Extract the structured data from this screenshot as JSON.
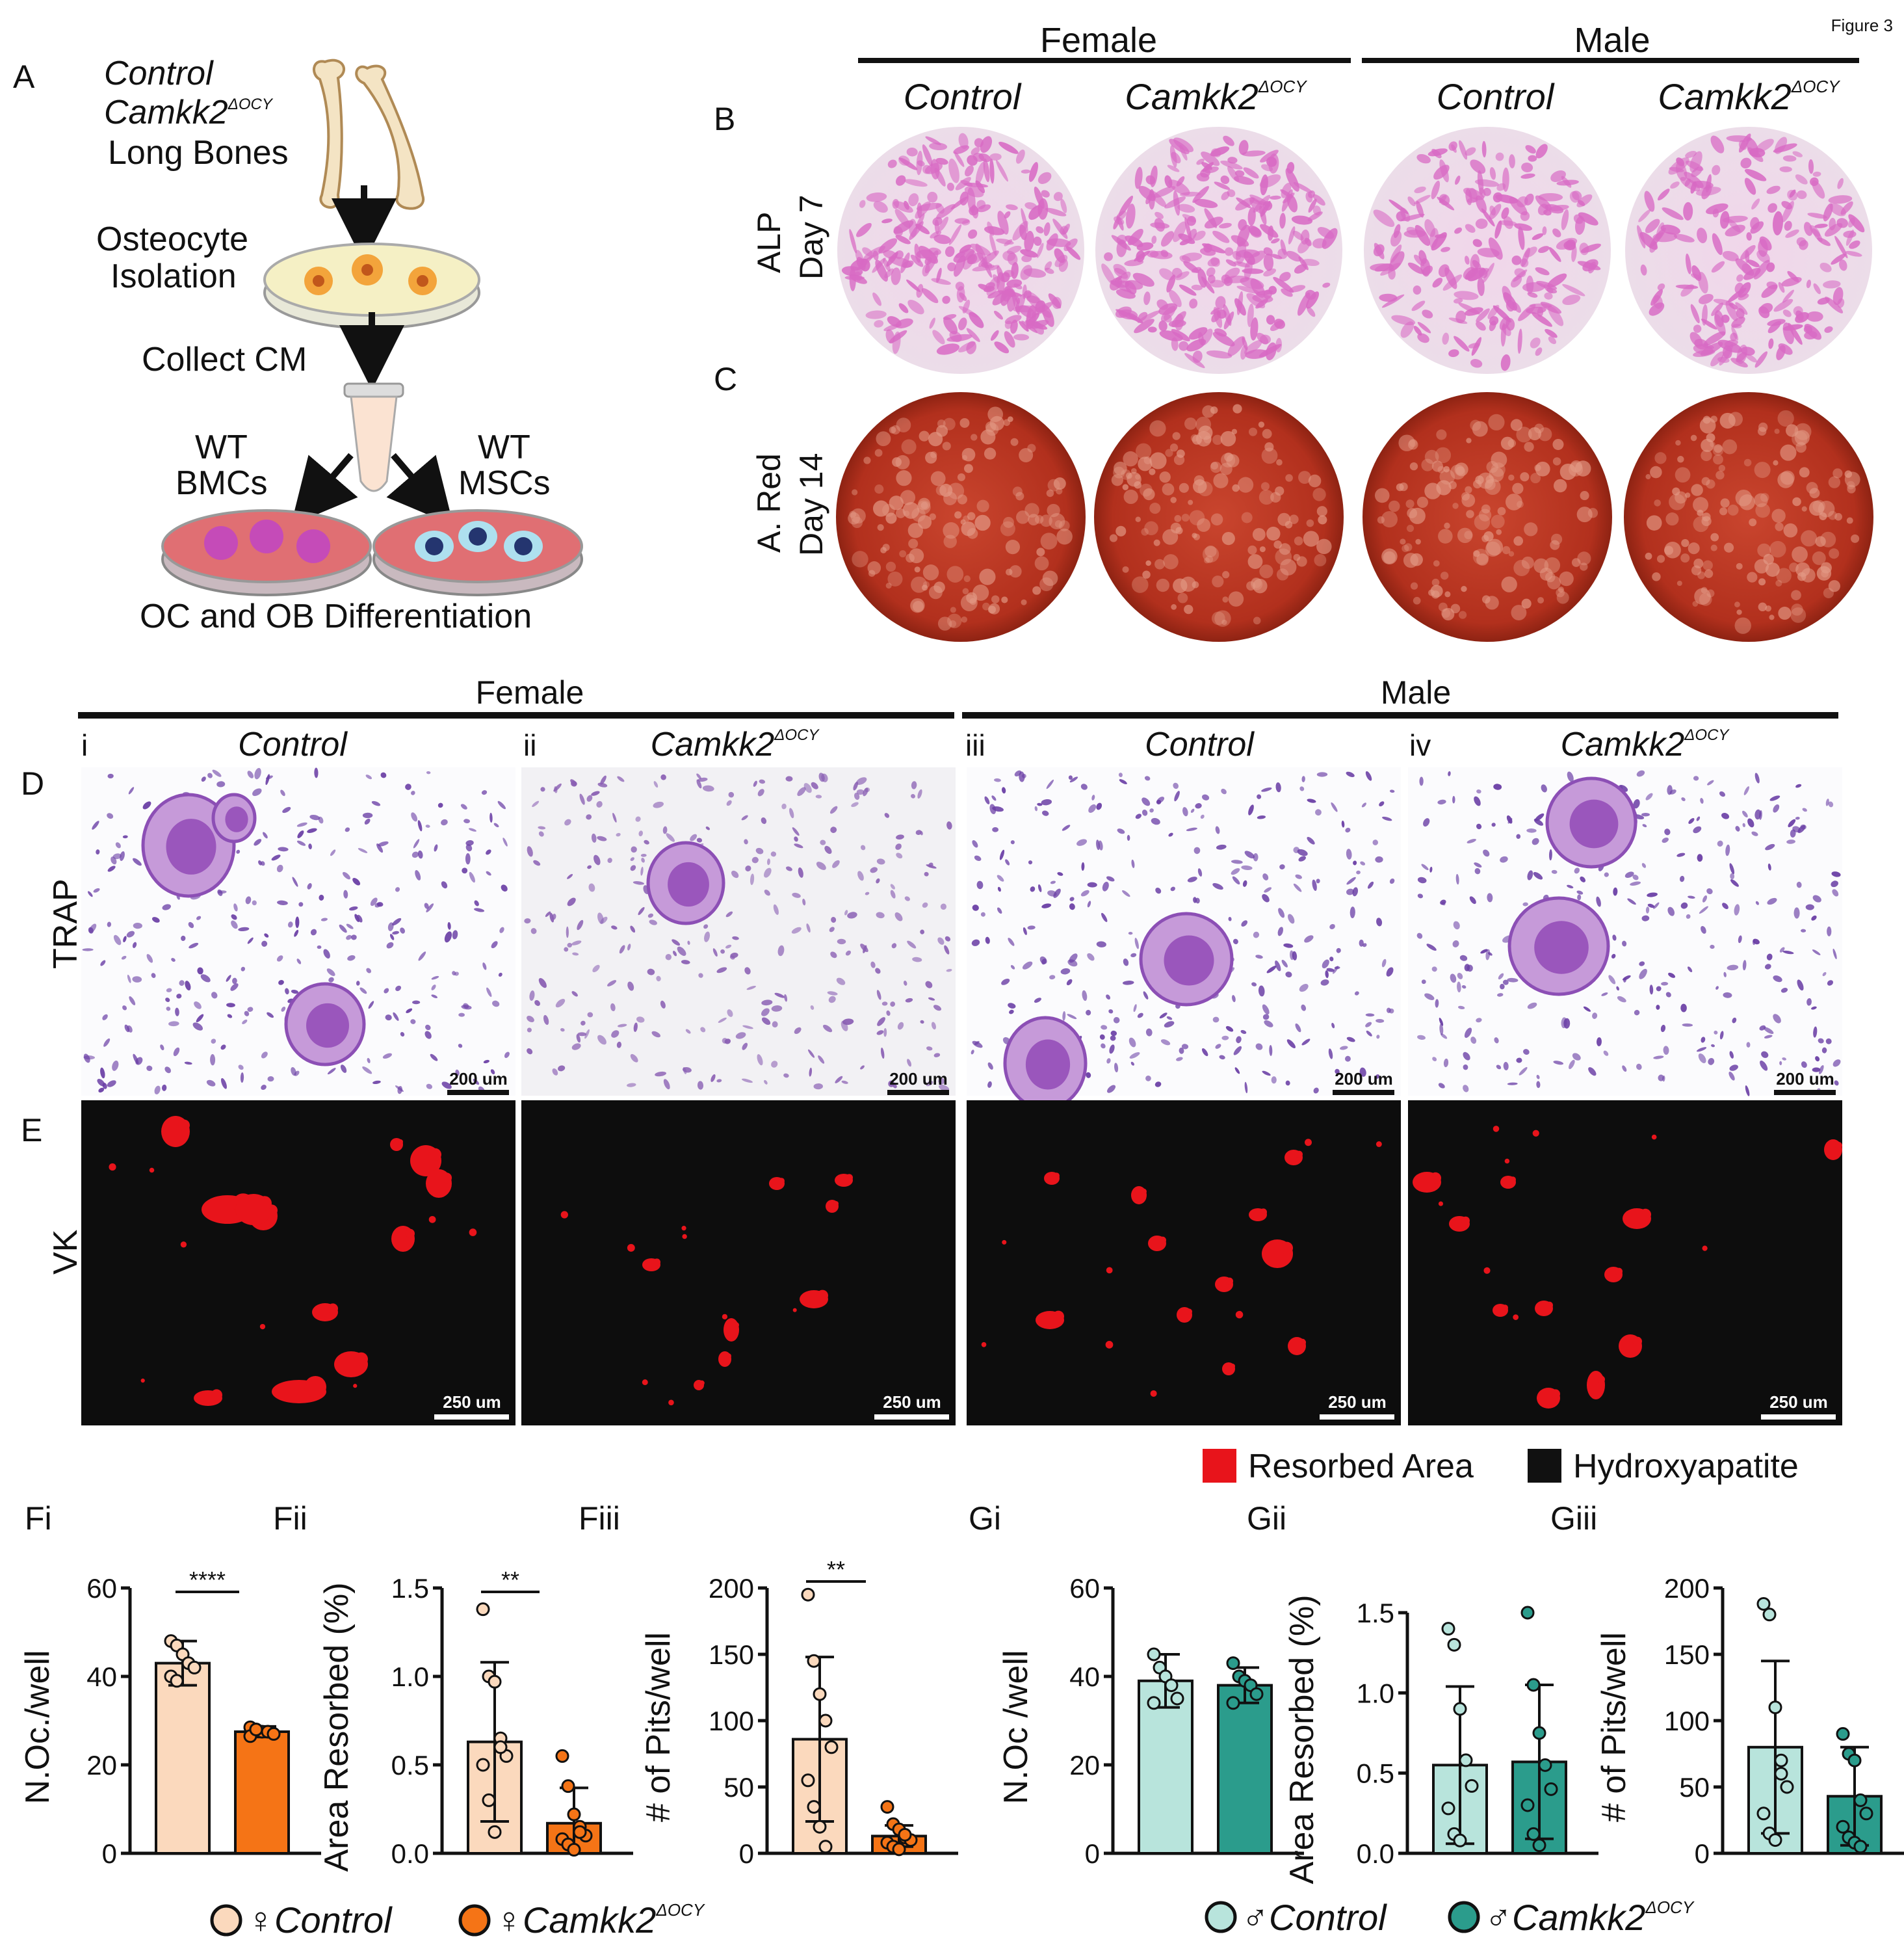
{
  "figure_label": "Figure 3",
  "panels": {
    "A": "A",
    "B": "B",
    "C": "C",
    "D": "D",
    "E": "E",
    "Fi": "Fi",
    "Fii": "Fii",
    "Fiii": "Fiii",
    "Gi": "Gi",
    "Gii": "Gii",
    "Giii": "Giii"
  },
  "schematic": {
    "control": "Control",
    "camkk2": "Camkk2",
    "camkk2_sup": "ΔOCY",
    "long_bones": "Long Bones",
    "osteocyte": "Osteocyte",
    "isolation": "Isolation",
    "collect_cm": "Collect CM",
    "wt1": "WT",
    "bmcs": "BMCs",
    "wt2": "WT",
    "mscs": "MSCs",
    "differentiation": "OC and OB Differentiation"
  },
  "top_headers": {
    "female": "Female",
    "male": "Male",
    "columns": [
      "Control",
      "Camkk2",
      "Control",
      "Camkk2"
    ],
    "sup": "ΔOCY"
  },
  "row_labels": {
    "alp_1": "ALP",
    "alp_2": "Day 7",
    "ared_1": "A. Red",
    "ared_2": "Day 14",
    "trap": "TRAP",
    "vk": "VK"
  },
  "mid_headers": {
    "female": "Female",
    "male": "Male",
    "roman": [
      "i",
      "ii",
      "iii",
      "iv"
    ],
    "columns": [
      "Control",
      "Camkk2",
      "Control",
      "Camkk2"
    ],
    "sup": "ΔOCY"
  },
  "scalebars": {
    "trap": "200 um",
    "vk": "250 um"
  },
  "legend_vk": {
    "resorbed": "Resorbed Area",
    "hydroxyapatite": "Hydroxyapatite"
  },
  "colors": {
    "female_control": "#fbd9bd",
    "female_camkk2": "#f57416",
    "male_control": "#b8e4dc",
    "male_camkk2": "#2b9c8c",
    "resorbed": "#e8141b",
    "alp": "#d86ac4",
    "ared": "#b3281a"
  },
  "bottom_legend": {
    "female_symbol": "♀",
    "male_symbol": "♂",
    "control": "Control",
    "camkk2": "Camkk2",
    "sup": "ΔOCY"
  },
  "chart_data": [
    {
      "id": "Fi",
      "type": "bar",
      "ylabel": "N.Oc./well",
      "ylim": [
        0,
        60
      ],
      "yticks": [
        "0",
        "20",
        "40",
        "60"
      ],
      "significance": "****",
      "series": [
        {
          "name": "♀Control",
          "mean": 43,
          "sd": 5,
          "points": [
            48,
            47,
            45,
            43,
            42,
            40,
            39
          ]
        },
        {
          "name": "♀Camkk2ΔOCY",
          "mean": 27.5,
          "sd": 1.2,
          "points": [
            28.5,
            28,
            27.5,
            27.5,
            27,
            26.5,
            28
          ]
        }
      ]
    },
    {
      "id": "Fii",
      "type": "bar",
      "ylabel": "Area Resorbed (%)",
      "ylim": [
        0,
        1.5
      ],
      "yticks": [
        "0.0",
        "0.5",
        "1.0",
        "1.5"
      ],
      "significance": "**",
      "series": [
        {
          "name": "♀Control",
          "mean": 0.63,
          "sd": 0.45,
          "points": [
            1.38,
            1.0,
            0.97,
            0.65,
            0.55,
            0.5,
            0.3,
            0.12,
            0.6
          ]
        },
        {
          "name": "♀Camkk2ΔOCY",
          "mean": 0.17,
          "sd": 0.2,
          "points": [
            0.55,
            0.38,
            0.22,
            0.15,
            0.1,
            0.08,
            0.05,
            0.02,
            0.12
          ]
        }
      ]
    },
    {
      "id": "Fiii",
      "type": "bar",
      "ylabel": "# of Pits/well",
      "ylim": [
        0,
        200
      ],
      "yticks": [
        "0",
        "50",
        "100",
        "150",
        "200"
      ],
      "significance": "**",
      "series": [
        {
          "name": "♀Control",
          "mean": 86,
          "sd": 62,
          "points": [
            195,
            145,
            120,
            100,
            80,
            55,
            35,
            20,
            5
          ]
        },
        {
          "name": "♀Camkk2ΔOCY",
          "mean": 13,
          "sd": 8,
          "points": [
            35,
            22,
            18,
            12,
            10,
            8,
            5,
            3,
            14
          ]
        }
      ]
    },
    {
      "id": "Gi",
      "type": "bar",
      "ylabel": "N.Oc /well",
      "ylim": [
        0,
        60
      ],
      "yticks": [
        "0",
        "20",
        "40",
        "60"
      ],
      "significance": "",
      "series": [
        {
          "name": "♂Control",
          "mean": 39,
          "sd": 6,
          "points": [
            45,
            42,
            40,
            38,
            35,
            34
          ]
        },
        {
          "name": "♂Camkk2ΔOCY",
          "mean": 38,
          "sd": 4,
          "points": [
            43,
            40,
            39,
            38,
            36,
            34
          ]
        }
      ]
    },
    {
      "id": "Gii",
      "type": "bar",
      "ylabel": "Area Resorbed (%)",
      "ylim": [
        0,
        1.5
      ],
      "yticks": [
        "0.0",
        "0.5",
        "1.0",
        "1.5"
      ],
      "significance": "",
      "series": [
        {
          "name": "♂Control",
          "mean": 0.55,
          "sd": 0.49,
          "points": [
            1.4,
            1.3,
            0.9,
            0.58,
            0.42,
            0.28,
            0.12,
            0.08
          ]
        },
        {
          "name": "♂Camkk2ΔOCY",
          "mean": 0.57,
          "sd": 0.48,
          "points": [
            1.5,
            1.05,
            0.75,
            0.55,
            0.4,
            0.3,
            0.12,
            0.05
          ]
        }
      ]
    },
    {
      "id": "Giii",
      "type": "bar",
      "ylabel": "# of Pits/well",
      "ylim": [
        0,
        200
      ],
      "yticks": [
        "0",
        "50",
        "100",
        "150",
        "200"
      ],
      "significance": "",
      "series": [
        {
          "name": "♂Control",
          "mean": 80,
          "sd": 65,
          "points": [
            188,
            180,
            110,
            70,
            50,
            30,
            15,
            10,
            60
          ]
        },
        {
          "name": "♂Camkk2ΔOCY",
          "mean": 43,
          "sd": 37,
          "points": [
            90,
            75,
            70,
            40,
            30,
            20,
            12,
            8,
            5
          ]
        }
      ]
    }
  ]
}
